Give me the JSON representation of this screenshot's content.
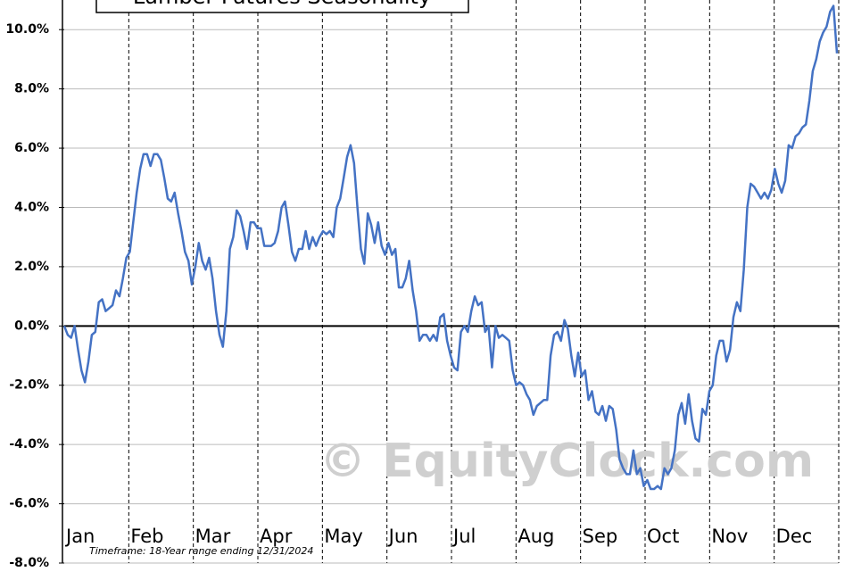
{
  "chart_data": {
    "type": "line",
    "title": "Lumber Futures Seasonality",
    "footnote": "Timeframe: 18-Year range ending 12/31/2024",
    "watermark": "© EquityClock.com",
    "months": [
      "Jan",
      "Feb",
      "Mar",
      "Apr",
      "May",
      "Jun",
      "Jul",
      "Aug",
      "Sep",
      "Oct",
      "Nov",
      "Dec"
    ],
    "series": [
      {
        "color": "#4472c4",
        "values": [
          0,
          -0.3,
          -0.4,
          0,
          -0.8,
          -1.5,
          -1.9,
          -1.2,
          -0.3,
          -0.2,
          0.8,
          0.9,
          0.5,
          0.6,
          0.7,
          1.2,
          1.0,
          1.6,
          2.3,
          2.5,
          3.5,
          4.5,
          5.3,
          5.8,
          5.8,
          5.4,
          5.8,
          5.8,
          5.6,
          5.0,
          4.3,
          4.2,
          4.5,
          3.8,
          3.2,
          2.5,
          2.2,
          1.4,
          2.0,
          2.8,
          2.2,
          1.9,
          2.3,
          1.6,
          0.5,
          -0.3,
          -0.7,
          0.5,
          2.6,
          3.0,
          3.9,
          3.7,
          3.2,
          2.6,
          3.5,
          3.5,
          3.3,
          3.3,
          2.7,
          2.7,
          2.7,
          2.8,
          3.2,
          4.0,
          4.2,
          3.4,
          2.5,
          2.2,
          2.6,
          2.6,
          3.2,
          2.6,
          3.0,
          2.7,
          3.0,
          3.2,
          3.1,
          3.2,
          3.0,
          4.0,
          4.3,
          5.0,
          5.7,
          6.1,
          5.5,
          4.0,
          2.6,
          2.1,
          3.8,
          3.4,
          2.8,
          3.5,
          2.7,
          2.4,
          2.8,
          2.4,
          2.6,
          1.3,
          1.3,
          1.6,
          2.2,
          1.2,
          0.5,
          -0.5,
          -0.3,
          -0.3,
          -0.5,
          -0.3,
          -0.5,
          0.3,
          0.4,
          -0.5,
          -1.0,
          -1.4,
          -1.5,
          -0.2,
          0.0,
          -0.2,
          0.5,
          1.0,
          0.7,
          0.8,
          -0.2,
          0.0,
          -1.4,
          0.0,
          -0.4,
          -0.3,
          -0.4,
          -0.5,
          -1.5,
          -2.0,
          -1.9,
          -2.0,
          -2.3,
          -2.5,
          -3.0,
          -2.7,
          -2.6,
          -2.5,
          -2.5,
          -1.0,
          -0.3,
          -0.2,
          -0.5,
          0.2,
          -0.1,
          -1.0,
          -1.7,
          -0.9,
          -1.7,
          -1.5,
          -2.5,
          -2.2,
          -2.9,
          -3.0,
          -2.7,
          -3.2,
          -2.7,
          -2.8,
          -3.5,
          -4.5,
          -4.8,
          -5.0,
          -5.0,
          -4.2,
          -5.0,
          -4.8,
          -5.4,
          -5.2,
          -5.5,
          -5.5,
          -5.4,
          -5.5,
          -4.8,
          -5.0,
          -4.8,
          -4.2,
          -3.0,
          -2.6,
          -3.3,
          -2.3,
          -3.2,
          -3.8,
          -3.9,
          -2.8,
          -3.0,
          -2.2,
          -2.0,
          -1.0,
          -0.5,
          -0.5,
          -1.2,
          -0.8,
          0.3,
          0.8,
          0.5,
          1.9,
          4.0,
          4.8,
          4.7,
          4.5,
          4.3,
          4.5,
          4.3,
          4.6,
          5.3,
          4.8,
          4.5,
          4.9,
          6.1,
          6.0,
          6.4,
          6.5,
          6.7,
          6.8,
          7.6,
          8.6,
          9.0,
          9.6,
          9.9,
          10.1,
          10.6,
          10.8,
          9.2
        ]
      }
    ],
    "ylim": [
      -8,
      11
    ],
    "yticks": [
      {
        "value": -8,
        "label": "-8.0%"
      },
      {
        "value": -6,
        "label": "-6.0%"
      },
      {
        "value": -4,
        "label": "-4.0%"
      },
      {
        "value": -2,
        "label": "-2.0%"
      },
      {
        "value": 0,
        "label": "0.0%"
      },
      {
        "value": 2,
        "label": "2.0%"
      },
      {
        "value": 4,
        "label": "4.0%"
      },
      {
        "value": 6,
        "label": "6.0%"
      },
      {
        "value": 8,
        "label": "8.0%"
      },
      {
        "value": 10,
        "label": "10.0%"
      }
    ],
    "grid": true
  }
}
